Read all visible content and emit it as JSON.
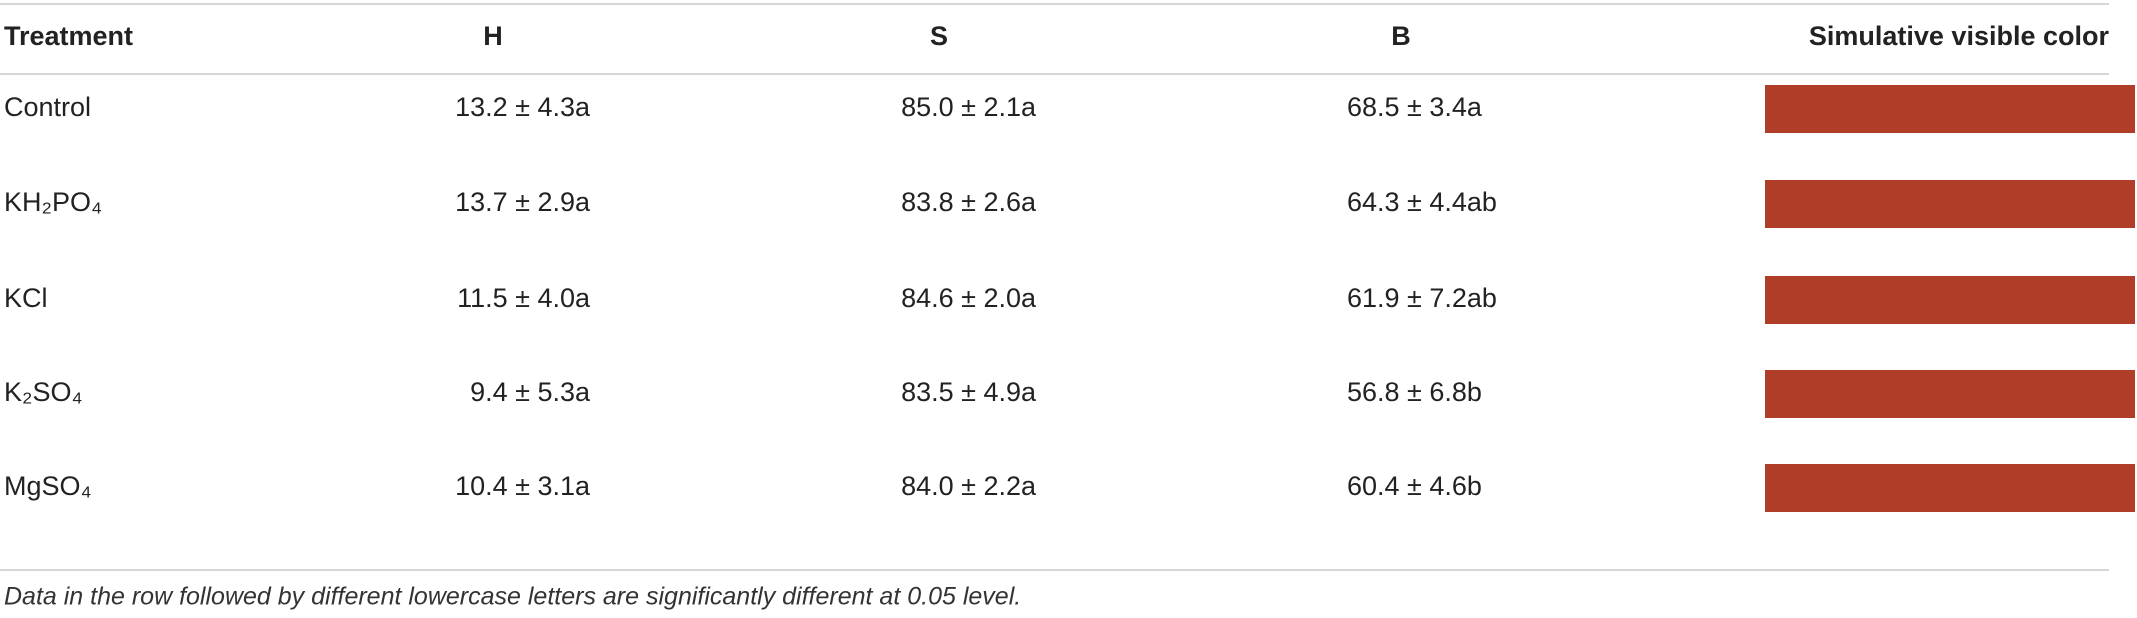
{
  "table": {
    "header": [
      "Treatment",
      "H",
      "S",
      "B",
      "Simulative visible color"
    ],
    "rows": [
      [
        "Control",
        "13.2 ± 4.3a",
        "85.0 ± 2.1a",
        "68.5 ± 3.4a"
      ],
      [
        "KH₂PO₄",
        "13.7 ± 2.9a",
        "83.8 ± 2.6a",
        "64.3 ± 4.4ab"
      ],
      [
        "KCl",
        "11.5 ± 4.0a",
        "84.6 ± 2.0a",
        "61.9 ± 7.2ab"
      ],
      [
        "K₂SO₄",
        "9.4 ± 5.3a",
        "83.5 ± 4.9a",
        "56.8 ± 6.8b"
      ],
      [
        "MgSO₄",
        "10.4 ± 3.1a",
        "84.0 ± 2.2a",
        "60.4 ± 4.6b"
      ]
    ],
    "swatch_colors": [
      "#b03d27",
      "#b03d27",
      "#b03d27",
      "#b03d27",
      "#b03d27"
    ]
  },
  "footnote": "Data in the row followed by different lowercase letters are significantly different at 0.05 level."
}
